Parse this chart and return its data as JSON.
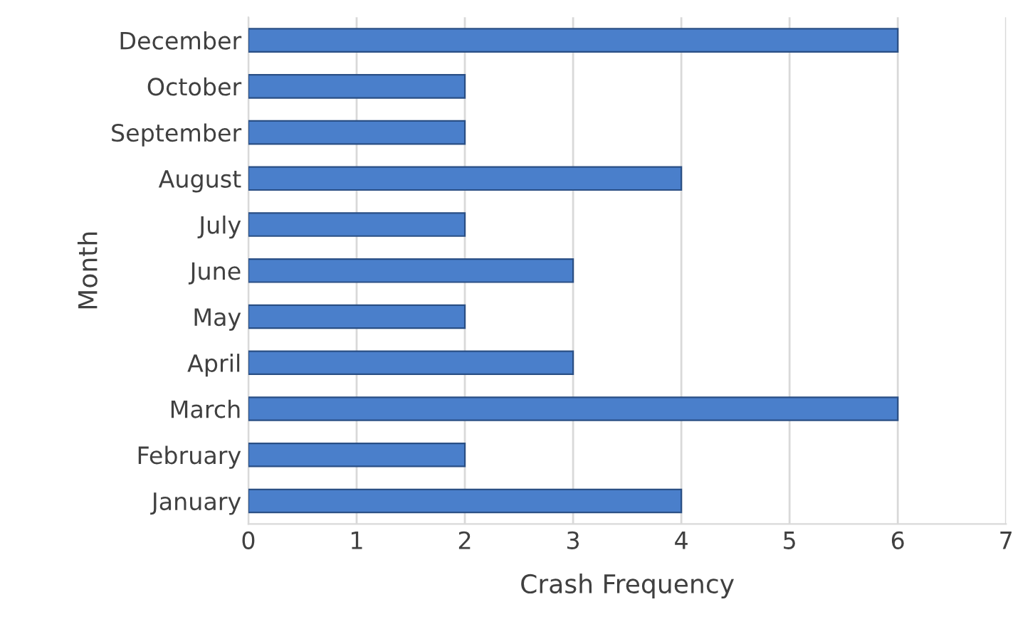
{
  "chart_data": {
    "type": "bar",
    "orientation": "horizontal",
    "xlabel": "Crash Frequency",
    "ylabel": "Month",
    "categories": [
      "December",
      "October",
      "September",
      "August",
      "July",
      "June",
      "May",
      "April",
      "March",
      "February",
      "January"
    ],
    "values": [
      6,
      2,
      2,
      4,
      2,
      3,
      2,
      3,
      6,
      2,
      4
    ],
    "color": "#4a7fcb",
    "xlim": [
      0,
      7
    ],
    "xticks": [
      0,
      1,
      2,
      3,
      4,
      5,
      6,
      7
    ],
    "grid": "x",
    "legend": false
  }
}
